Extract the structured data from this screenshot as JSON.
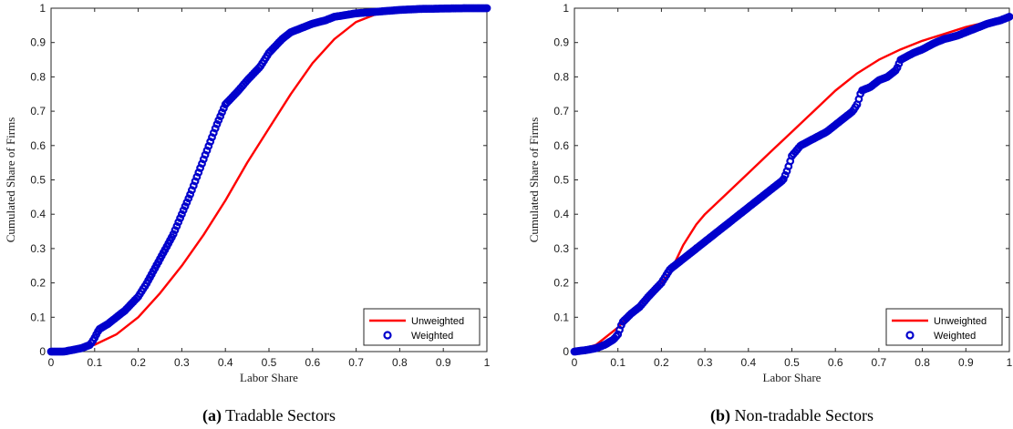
{
  "chart_data": [
    {
      "type": "line",
      "tag": "(a)",
      "caption": "Tradable Sectors",
      "xlabel": "Labor Share",
      "ylabel": "Cumulated Share of Firms",
      "xlim": [
        0,
        1
      ],
      "ylim": [
        0,
        1
      ],
      "xticks": [
        "0",
        "0.1",
        "0.2",
        "0.3",
        "0.4",
        "0.5",
        "0.6",
        "0.7",
        "0.8",
        "0.9",
        "1"
      ],
      "yticks": [
        "0",
        "0.1",
        "0.2",
        "0.3",
        "0.4",
        "0.5",
        "0.6",
        "0.7",
        "0.8",
        "0.9",
        "1"
      ],
      "grid": false,
      "legend_position": "bottom-right",
      "series": [
        {
          "name": "Unweighted",
          "style": "line",
          "color": "#ff0000",
          "x": [
            0.0,
            0.05,
            0.1,
            0.15,
            0.2,
            0.25,
            0.3,
            0.35,
            0.4,
            0.45,
            0.5,
            0.55,
            0.6,
            0.65,
            0.7,
            0.75,
            0.8,
            0.9,
            1.0
          ],
          "y": [
            0.0,
            0.005,
            0.02,
            0.05,
            0.1,
            0.17,
            0.25,
            0.34,
            0.44,
            0.55,
            0.65,
            0.75,
            0.84,
            0.91,
            0.96,
            0.985,
            0.995,
            0.999,
            1.0
          ]
        },
        {
          "name": "Weighted",
          "style": "markers",
          "color": "#0000cc",
          "x": [
            0.0,
            0.03,
            0.05,
            0.07,
            0.09,
            0.1,
            0.11,
            0.13,
            0.15,
            0.17,
            0.2,
            0.22,
            0.25,
            0.28,
            0.3,
            0.32,
            0.35,
            0.38,
            0.4,
            0.43,
            0.45,
            0.48,
            0.5,
            0.53,
            0.55,
            0.58,
            0.6,
            0.63,
            0.65,
            0.7,
            0.75,
            0.8,
            0.85,
            0.9,
            0.95,
            1.0
          ],
          "y": [
            0.0,
            0.0,
            0.005,
            0.01,
            0.02,
            0.04,
            0.065,
            0.08,
            0.1,
            0.12,
            0.16,
            0.2,
            0.27,
            0.34,
            0.4,
            0.46,
            0.56,
            0.66,
            0.72,
            0.76,
            0.79,
            0.83,
            0.87,
            0.91,
            0.93,
            0.945,
            0.955,
            0.965,
            0.975,
            0.985,
            0.99,
            0.995,
            0.998,
            0.999,
            1.0,
            1.0
          ]
        }
      ]
    },
    {
      "type": "line",
      "tag": "(b)",
      "caption": "Non-tradable Sectors",
      "xlabel": "Labor Share",
      "ylabel": "Cumulated Share of Firms",
      "xlim": [
        0,
        1
      ],
      "ylim": [
        0,
        1
      ],
      "xticks": [
        "0",
        "0.1",
        "0.2",
        "0.3",
        "0.4",
        "0.5",
        "0.6",
        "0.7",
        "0.8",
        "0.9",
        "1"
      ],
      "yticks": [
        "0",
        "0.1",
        "0.2",
        "0.3",
        "0.4",
        "0.5",
        "0.6",
        "0.7",
        "0.8",
        "0.9",
        "1"
      ],
      "grid": false,
      "legend_position": "bottom-right",
      "series": [
        {
          "name": "Unweighted",
          "style": "line",
          "color": "#ff0000",
          "x": [
            0.0,
            0.05,
            0.1,
            0.15,
            0.2,
            0.22,
            0.25,
            0.28,
            0.3,
            0.35,
            0.4,
            0.45,
            0.5,
            0.55,
            0.6,
            0.65,
            0.7,
            0.75,
            0.8,
            0.85,
            0.9,
            0.95,
            1.0
          ],
          "y": [
            0.0,
            0.02,
            0.07,
            0.14,
            0.2,
            0.23,
            0.31,
            0.37,
            0.4,
            0.46,
            0.52,
            0.58,
            0.64,
            0.7,
            0.76,
            0.81,
            0.85,
            0.88,
            0.905,
            0.925,
            0.945,
            0.96,
            0.98
          ]
        },
        {
          "name": "Weighted",
          "style": "markers",
          "color": "#0000cc",
          "x": [
            0.0,
            0.03,
            0.05,
            0.07,
            0.09,
            0.1,
            0.11,
            0.13,
            0.15,
            0.17,
            0.2,
            0.22,
            0.25,
            0.28,
            0.3,
            0.33,
            0.35,
            0.38,
            0.4,
            0.43,
            0.45,
            0.47,
            0.48,
            0.49,
            0.5,
            0.52,
            0.55,
            0.58,
            0.6,
            0.62,
            0.64,
            0.65,
            0.66,
            0.68,
            0.7,
            0.72,
            0.74,
            0.75,
            0.78,
            0.8,
            0.83,
            0.85,
            0.88,
            0.9,
            0.93,
            0.95,
            0.98,
            1.0
          ],
          "y": [
            0.0,
            0.005,
            0.01,
            0.02,
            0.035,
            0.05,
            0.085,
            0.11,
            0.13,
            0.16,
            0.2,
            0.24,
            0.27,
            0.3,
            0.32,
            0.35,
            0.37,
            0.4,
            0.42,
            0.45,
            0.47,
            0.49,
            0.5,
            0.53,
            0.57,
            0.6,
            0.62,
            0.64,
            0.66,
            0.68,
            0.7,
            0.72,
            0.76,
            0.77,
            0.79,
            0.8,
            0.82,
            0.85,
            0.87,
            0.88,
            0.9,
            0.91,
            0.92,
            0.93,
            0.945,
            0.955,
            0.965,
            0.975
          ]
        }
      ]
    }
  ]
}
